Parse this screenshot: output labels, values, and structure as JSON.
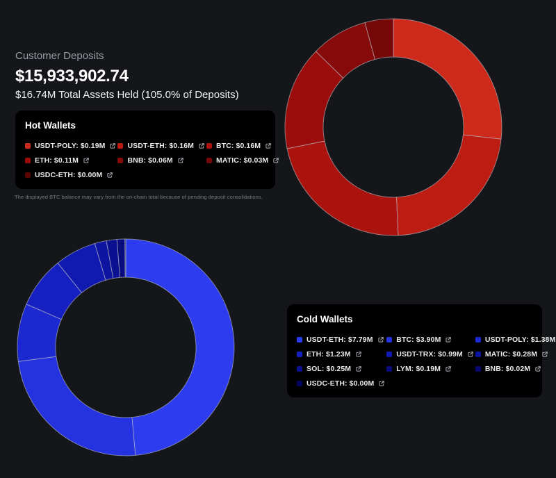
{
  "header": {
    "title": "Customer Deposits",
    "deposits_total": "$15,933,902.74",
    "assets_summary": "$16.74M Total Assets Held (105.0% of Deposits)"
  },
  "note": "The displayed BTC balance may vary from the on-chain total because of pending deposit consolidations.",
  "panels": {
    "hot": {
      "title": "Hot Wallets",
      "items": [
        {
          "label": "USDT-POLY",
          "value": "$0.19M",
          "color": "#ce2a1c"
        },
        {
          "label": "USDT-ETH",
          "value": "$0.16M",
          "color": "#bd1c13"
        },
        {
          "label": "BTC",
          "value": "$0.16M",
          "color": "#ab130f"
        },
        {
          "label": "ETH",
          "value": "$0.11M",
          "color": "#9a0d0c"
        },
        {
          "label": "BNB",
          "value": "$0.06M",
          "color": "#870a0a"
        },
        {
          "label": "MATIC",
          "value": "$0.03M",
          "color": "#750708"
        },
        {
          "label": "USDC-ETH",
          "value": "$0.00M",
          "color": "#5c0404"
        }
      ]
    },
    "cold": {
      "title": "Cold Wallets",
      "items": [
        {
          "label": "USDT-ETH",
          "value": "$7.79M",
          "color": "#2d3cee"
        },
        {
          "label": "BTC",
          "value": "$3.90M",
          "color": "#2432e0"
        },
        {
          "label": "USDT-POLY",
          "value": "$1.38M",
          "color": "#1c28d0"
        },
        {
          "label": "ETH",
          "value": "$1.23M",
          "color": "#1620c0"
        },
        {
          "label": "USDT-TRX",
          "value": "$0.99M",
          "color": "#111ab0"
        },
        {
          "label": "MATIC",
          "value": "$0.28M",
          "color": "#0d149f"
        },
        {
          "label": "SOL",
          "value": "$0.25M",
          "color": "#0a108f"
        },
        {
          "label": "LYM",
          "value": "$0.19M",
          "color": "#080c7e"
        },
        {
          "label": "BNB",
          "value": "$0.02M",
          "color": "#06096e"
        },
        {
          "label": "USDC-ETH",
          "value": "$0.00M",
          "color": "#04065e"
        }
      ]
    }
  },
  "chart_data": [
    {
      "type": "pie",
      "subtype": "donut",
      "title": "Hot Wallets",
      "units": "USD millions",
      "labels": [
        "USDT-POLY",
        "USDT-ETH",
        "BTC",
        "ETH",
        "BNB",
        "MATIC",
        "USDC-ETH"
      ],
      "values": [
        0.19,
        0.16,
        0.16,
        0.11,
        0.06,
        0.03,
        0.0
      ],
      "display_values": [
        "$0.19M",
        "$0.16M",
        "$0.16M",
        "$0.11M",
        "$0.06M",
        "$0.03M",
        "$0.00M"
      ],
      "colors": [
        "#ce2a1c",
        "#bd1c13",
        "#ab130f",
        "#9a0d0c",
        "#870a0a",
        "#750708",
        "#5c0404"
      ],
      "total": 0.71,
      "start_angle_deg": 0,
      "direction": "clockwise",
      "inner_radius_ratio": 0.65,
      "legend_position": "left-panel"
    },
    {
      "type": "pie",
      "subtype": "donut",
      "title": "Cold Wallets",
      "units": "USD millions",
      "labels": [
        "USDT-ETH",
        "BTC",
        "USDT-POLY",
        "ETH",
        "USDT-TRX",
        "MATIC",
        "SOL",
        "LYM",
        "BNB",
        "USDC-ETH"
      ],
      "values": [
        7.79,
        3.9,
        1.38,
        1.23,
        0.99,
        0.28,
        0.25,
        0.19,
        0.02,
        0.0
      ],
      "display_values": [
        "$7.79M",
        "$3.90M",
        "$1.38M",
        "$1.23M",
        "$0.99M",
        "$0.28M",
        "$0.25M",
        "$0.19M",
        "$0.02M",
        "$0.00M"
      ],
      "colors": [
        "#2d3cee",
        "#2432e0",
        "#1c28d0",
        "#1620c0",
        "#111ab0",
        "#0d149f",
        "#0a108f",
        "#080c7e",
        "#06096e",
        "#04065e"
      ],
      "total": 16.03,
      "start_angle_deg": 0,
      "direction": "clockwise",
      "inner_radius_ratio": 0.65,
      "legend_position": "right-panel"
    }
  ],
  "colors": {
    "page_bg": "#14161a",
    "panel_bg": "#000000",
    "text_primary": "#ffffff",
    "text_secondary": "#989da6",
    "note_text": "#75787f",
    "segment_stroke": "#bcc0c6",
    "hot_accent": "#ce2a1c",
    "cold_accent": "#2d3cee"
  }
}
